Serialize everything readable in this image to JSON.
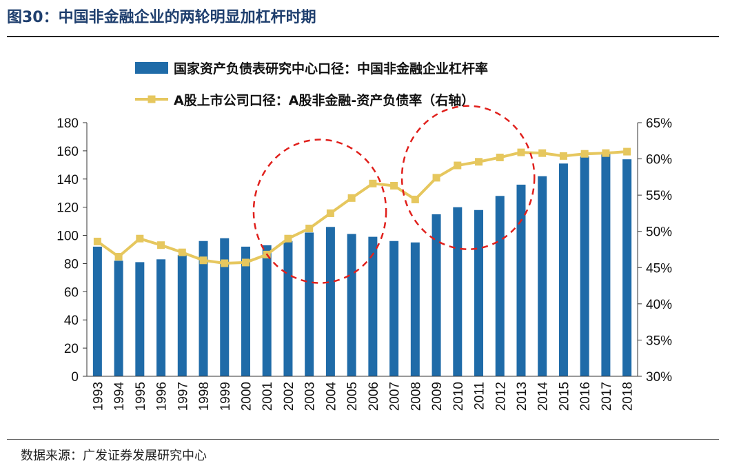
{
  "header": {
    "title": "图30：中国非金融企业的两轮明显加杠杆时期"
  },
  "footer": {
    "source": "数据来源：广发证券发展研究中心"
  },
  "colors": {
    "bar": "#1f6ba8",
    "line": "#e6c75e",
    "circle": "#e0201c",
    "title": "#1f3f6e"
  },
  "chart_data": {
    "type": "bar",
    "categories": [
      "1993",
      "1994",
      "1995",
      "1996",
      "1997",
      "1998",
      "1999",
      "2000",
      "2001",
      "2002",
      "2003",
      "2004",
      "2005",
      "2006",
      "2007",
      "2008",
      "2009",
      "2010",
      "2011",
      "2012",
      "2013",
      "2014",
      "2015",
      "2016",
      "2017",
      "2018"
    ],
    "series": [
      {
        "name": "国家资产负债表研究中心口径：中国非金融企业杠杆率",
        "type": "bar",
        "axis": "left",
        "values": [
          92,
          82,
          81,
          83,
          86,
          96,
          98,
          92,
          93,
          96,
          102,
          106,
          101,
          99,
          96,
          95,
          115,
          120,
          118,
          128,
          136,
          142,
          151,
          156,
          158,
          154
        ]
      },
      {
        "name": "A股上市公司口径：A股非金融-资产负债率（右轴）",
        "type": "line",
        "axis": "right",
        "values": [
          48.6,
          46.5,
          49.0,
          48.1,
          47.1,
          46.0,
          45.6,
          45.7,
          46.8,
          49.0,
          50.4,
          52.5,
          54.6,
          56.6,
          56.3,
          54.4,
          57.4,
          59.1,
          59.6,
          60.2,
          60.9,
          60.8,
          60.4,
          60.7,
          60.8,
          61.0
        ]
      }
    ],
    "left_axis": {
      "min": 0,
      "max": 180,
      "ticks": [
        "0",
        "20",
        "40",
        "60",
        "80",
        "100",
        "120",
        "140",
        "160",
        "180"
      ]
    },
    "right_axis": {
      "min": 30,
      "max": 65,
      "ticks": [
        "30%",
        "35%",
        "40%",
        "45%",
        "50%",
        "55%",
        "60%",
        "65%"
      ]
    },
    "legend_position": "top",
    "annotations": [
      {
        "type": "dashed-ellipse",
        "from": "2002",
        "to": "2005"
      },
      {
        "type": "dashed-ellipse",
        "from": "2009",
        "to": "2012"
      }
    ]
  }
}
